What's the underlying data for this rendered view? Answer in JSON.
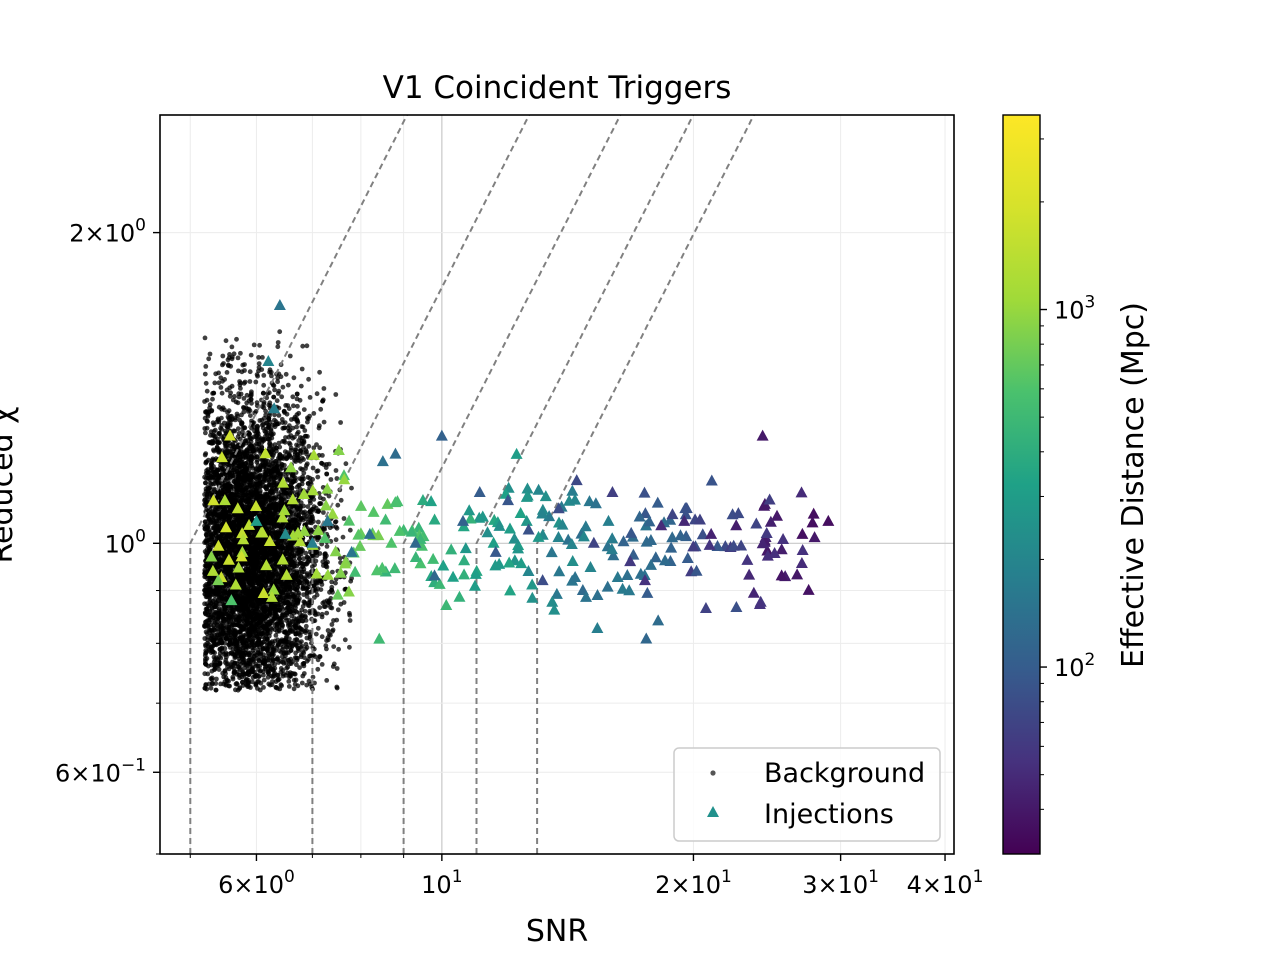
{
  "chart_data": {
    "type": "scatter",
    "title": "V1 Coincident Triggers",
    "xlabel": "SNR",
    "ylabel": "Reduced χ",
    "xscale": "log",
    "yscale": "log",
    "xlim": [
      4.6,
      41
    ],
    "ylim": [
      0.5,
      2.6
    ],
    "grid": true,
    "x_ticks": [
      {
        "value": 6,
        "mantissa": "6",
        "exponent": "0"
      },
      {
        "value": 10,
        "mantissa": "",
        "exponent": "1"
      },
      {
        "value": 20,
        "mantissa": "2",
        "exponent": "1"
      },
      {
        "value": 30,
        "mantissa": "3",
        "exponent": "1"
      },
      {
        "value": 40,
        "mantissa": "4",
        "exponent": "1"
      }
    ],
    "y_ticks": [
      {
        "value": 0.6,
        "mantissa": "6",
        "exponent": "−1"
      },
      {
        "value": 1,
        "mantissa": "",
        "exponent": "0"
      },
      {
        "value": 2,
        "mantissa": "2",
        "exponent": "0"
      }
    ],
    "threshold_curves": {
      "style": "dashed",
      "color": "#808080",
      "snr_starts": [
        5,
        7,
        9,
        11,
        13
      ]
    },
    "colorbar": {
      "label": "Effective Distance (Mpc)",
      "scale": "log",
      "range": [
        30,
        3500
      ],
      "colormap": "viridis",
      "ticks": [
        {
          "value": 100,
          "mantissa": "",
          "exponent": "2"
        },
        {
          "value": 1000,
          "mantissa": "",
          "exponent": "3"
        }
      ]
    },
    "legend": {
      "position": "lower-right",
      "entries": [
        "Background",
        "Injections"
      ]
    },
    "series": [
      {
        "name": "Background",
        "marker": "dot",
        "color": "#000000",
        "count": 7000,
        "snr_range": [
          5.2,
          7.8
        ],
        "chi_range": [
          0.72,
          1.7
        ],
        "description_center": [
          5.9,
          0.95
        ]
      },
      {
        "name": "Injections",
        "marker": "triangle",
        "color_by": "effective_distance",
        "points": [
          [
            6.4,
            1.7,
            150
          ],
          [
            6.2,
            1.5,
            200
          ],
          [
            6.3,
            1.35,
            180
          ],
          [
            5.5,
            1.1,
            1200
          ],
          [
            5.7,
            1.08,
            1500
          ],
          [
            5.3,
            0.97,
            900
          ],
          [
            5.4,
            0.92,
            800
          ],
          [
            5.6,
            0.88,
            600
          ],
          [
            6.0,
            1.05,
            300
          ],
          [
            6.5,
            1.02,
            220
          ],
          [
            7.0,
            1.0,
            180
          ],
          [
            7.3,
            1.05,
            160
          ],
          [
            7.8,
            0.98,
            150
          ],
          [
            8.2,
            1.02,
            140
          ],
          [
            8.5,
            1.2,
            140
          ],
          [
            8.8,
            1.22,
            130
          ],
          [
            9.3,
            1.0,
            120
          ],
          [
            9.8,
            0.93,
            120
          ],
          [
            10.0,
            1.27,
            110
          ],
          [
            10.6,
            1.05,
            110
          ],
          [
            11.1,
            1.12,
            100
          ],
          [
            11.6,
            0.98,
            95
          ],
          [
            12.0,
            1.1,
            90
          ],
          [
            12.7,
            1.03,
            85
          ],
          [
            13.2,
            0.92,
            80
          ],
          [
            13.8,
            1.08,
            80
          ],
          [
            14.5,
            1.15,
            75
          ],
          [
            15.2,
            1.0,
            70
          ],
          [
            16.0,
            1.12,
            65
          ],
          [
            16.8,
            0.96,
            60
          ],
          [
            17.5,
            0.92,
            55
          ],
          [
            18.3,
            1.04,
            50
          ],
          [
            19.5,
            1.05,
            48
          ],
          [
            21.0,
            1.02,
            45
          ],
          [
            22.5,
            1.04,
            42
          ],
          [
            24.2,
            1.27,
            40
          ],
          [
            25.5,
            0.93,
            38
          ],
          [
            27.0,
            1.02,
            36
          ],
          [
            29.0,
            1.05,
            35
          ]
        ]
      }
    ]
  }
}
